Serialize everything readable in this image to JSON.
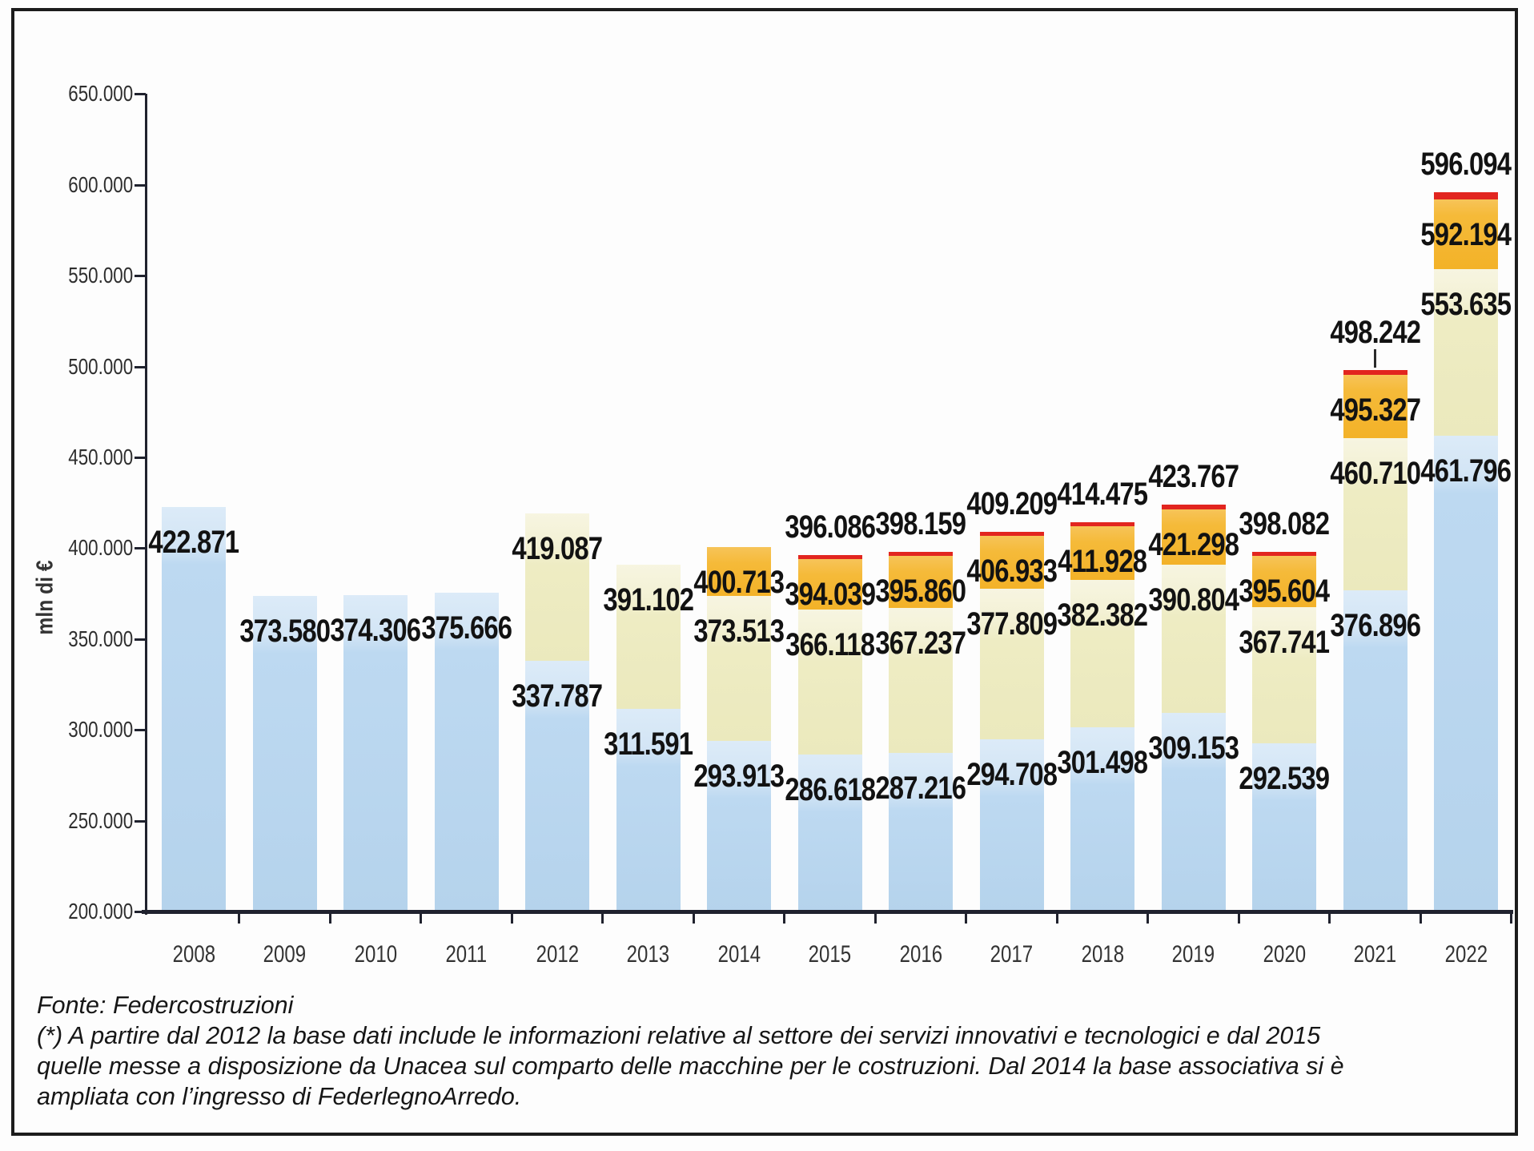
{
  "chart_data": {
    "type": "bar",
    "stacked": true,
    "title": "",
    "xlabel": "",
    "ylabel": "mln di €",
    "ylim": [
      200000,
      650000
    ],
    "ytick_step": 50000,
    "grid": false,
    "legend": "none",
    "y_axis": {
      "ticks": [
        {
          "value": 650000,
          "label": "650.000"
        },
        {
          "value": 600000,
          "label": "600.000"
        },
        {
          "value": 550000,
          "label": "550.000"
        },
        {
          "value": 500000,
          "label": "500.000"
        },
        {
          "value": 450000,
          "label": "450.000"
        },
        {
          "value": 400000,
          "label": "400.000"
        },
        {
          "value": 350000,
          "label": "350.000"
        },
        {
          "value": 300000,
          "label": "300.000"
        },
        {
          "value": 250000,
          "label": "250.000"
        },
        {
          "value": 200000,
          "label": "200.000"
        }
      ]
    },
    "categories": [
      "2008",
      "2009",
      "2010",
      "2011",
      "2012",
      "2013",
      "2014",
      "2015",
      "2016",
      "2017",
      "2018",
      "2019",
      "2020",
      "2021",
      "2022"
    ],
    "value_note": "segment values are cumulative stack tops in mln di €, bars start at 200.000",
    "bars": [
      {
        "year": "2008",
        "segments": [
          {
            "key": "blue",
            "value": 422871,
            "label": "422.871"
          }
        ]
      },
      {
        "year": "2009",
        "segments": [
          {
            "key": "blue",
            "value": 373580,
            "label": "373.580"
          }
        ]
      },
      {
        "year": "2010",
        "segments": [
          {
            "key": "blue",
            "value": 374306,
            "label": "374.306"
          }
        ]
      },
      {
        "year": "2011",
        "segments": [
          {
            "key": "blue",
            "value": 375666,
            "label": "375.666"
          }
        ]
      },
      {
        "year": "2012",
        "segments": [
          {
            "key": "blue",
            "value": 337787,
            "label": "337.787"
          },
          {
            "key": "yellow",
            "value": 419087,
            "label": "419.087"
          }
        ]
      },
      {
        "year": "2013",
        "segments": [
          {
            "key": "blue",
            "value": 311591,
            "label": "311.591"
          },
          {
            "key": "yellow",
            "value": 391102,
            "label": "391.102"
          }
        ]
      },
      {
        "year": "2014",
        "segments": [
          {
            "key": "blue",
            "value": 293913,
            "label": "293.913"
          },
          {
            "key": "yellow",
            "value": 373513,
            "label": "373.513"
          },
          {
            "key": "orange",
            "value": 400713,
            "label": "400.713"
          }
        ]
      },
      {
        "year": "2015",
        "segments": [
          {
            "key": "blue",
            "value": 286618,
            "label": "286.618"
          },
          {
            "key": "yellow",
            "value": 366118,
            "label": "366.118"
          },
          {
            "key": "orange",
            "value": 394039,
            "label": "394.039"
          },
          {
            "key": "red",
            "value": 396086,
            "label": "396.086"
          }
        ]
      },
      {
        "year": "2016",
        "segments": [
          {
            "key": "blue",
            "value": 287216,
            "label": "287.216"
          },
          {
            "key": "yellow",
            "value": 367237,
            "label": "367.237"
          },
          {
            "key": "orange",
            "value": 395860,
            "label": "395.860"
          },
          {
            "key": "red",
            "value": 398159,
            "label": "398.159"
          }
        ]
      },
      {
        "year": "2017",
        "segments": [
          {
            "key": "blue",
            "value": 294708,
            "label": "294.708"
          },
          {
            "key": "yellow",
            "value": 377809,
            "label": "377.809"
          },
          {
            "key": "orange",
            "value": 406933,
            "label": "406.933"
          },
          {
            "key": "red",
            "value": 409209,
            "label": "409.209"
          }
        ]
      },
      {
        "year": "2018",
        "segments": [
          {
            "key": "blue",
            "value": 301498,
            "label": "301.498"
          },
          {
            "key": "yellow",
            "value": 382382,
            "label": "382.382"
          },
          {
            "key": "orange",
            "value": 411928,
            "label": "411.928"
          },
          {
            "key": "red",
            "value": 414475,
            "label": "414.475"
          }
        ]
      },
      {
        "year": "2019",
        "segments": [
          {
            "key": "blue",
            "value": 309153,
            "label": "309.153"
          },
          {
            "key": "yellow",
            "value": 390804,
            "label": "390.804"
          },
          {
            "key": "orange",
            "value": 421298,
            "label": "421.298"
          },
          {
            "key": "red",
            "value": 423767,
            "label": "423.767"
          }
        ]
      },
      {
        "year": "2020",
        "segments": [
          {
            "key": "blue",
            "value": 292539,
            "label": "292.539"
          },
          {
            "key": "yellow",
            "value": 367741,
            "label": "367.741"
          },
          {
            "key": "orange",
            "value": 395604,
            "label": "395.604"
          },
          {
            "key": "red",
            "value": 398082,
            "label": "398.082"
          }
        ]
      },
      {
        "year": "2021",
        "callout": true,
        "segments": [
          {
            "key": "blue",
            "value": 376896,
            "label": "376.896"
          },
          {
            "key": "yellow",
            "value": 460710,
            "label": "460.710"
          },
          {
            "key": "orange",
            "value": 495327,
            "label": "495.327"
          },
          {
            "key": "red",
            "value": 498242,
            "label": "498.242"
          }
        ]
      },
      {
        "year": "2022",
        "segments": [
          {
            "key": "blue",
            "value": 461796,
            "label": "461.796"
          },
          {
            "key": "yellow",
            "value": 553635,
            "label": "553.635"
          },
          {
            "key": "orange",
            "value": 592194,
            "label": "592.194"
          },
          {
            "key": "red",
            "value": 596094,
            "label": "596.094"
          }
        ]
      }
    ],
    "colors": {
      "blue": "#bcd9f1",
      "yellow": "#edebc2",
      "orange": "#f3b228",
      "red": "#e2251f",
      "axis": "#20222e",
      "label_text": "#121212"
    }
  },
  "footer": {
    "fonte": "Fonte: Federcostruzioni",
    "note_lines": [
      "(*) A partire dal 2012 la base dati include le informazioni relative al settore dei servizi innovativi e tecnologici e dal 2015",
      "quelle messe a disposizione da Unacea sul comparto delle macchine per le costruzioni. Dal 2014 la base associativa si è",
      "ampliata con l’ingresso di FederlegnoArredo."
    ]
  }
}
